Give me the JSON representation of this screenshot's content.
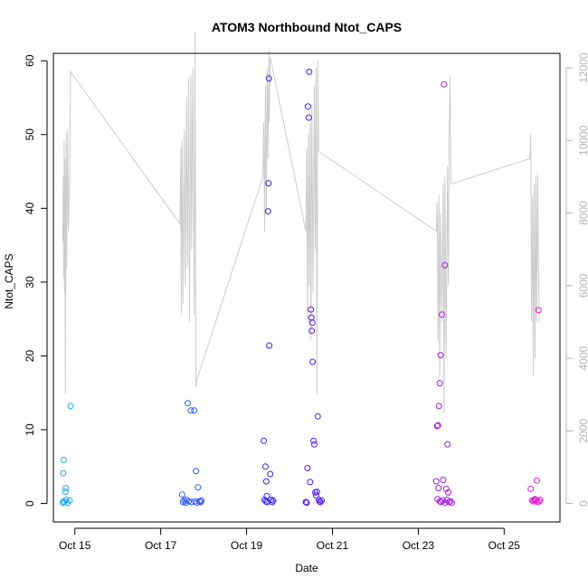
{
  "chart_data": {
    "type": "scatter",
    "title": "ATOM3 Northbound Ntot_CAPS",
    "xlabel": "Date",
    "ylabel": "Ntot_CAPS",
    "xlim": [
      14.5,
      26.3
    ],
    "ylim": [
      -2.5,
      61
    ],
    "y2lim": [
      -510,
      12400
    ],
    "x_ticks": [
      {
        "value": 15,
        "label": "Oct 15"
      },
      {
        "value": 17,
        "label": "Oct 17"
      },
      {
        "value": 19,
        "label": "Oct 19"
      },
      {
        "value": 21,
        "label": "Oct 21"
      },
      {
        "value": 23,
        "label": "Oct 23"
      },
      {
        "value": 25,
        "label": "Oct 25"
      }
    ],
    "y_ticks": [
      0,
      10,
      20,
      30,
      40,
      50,
      60
    ],
    "y2_ticks": [
      0,
      2000,
      4000,
      6000,
      8000,
      10000,
      12000
    ],
    "grid": false,
    "colors": {
      "line": "#cccccc",
      "point_start": "#1ab2f5",
      "point_mid": "#3a1af5",
      "point_end": "#f51ad0",
      "axis": "#000000",
      "secondary_axis": "#b3b3b3"
    },
    "series": [
      {
        "type": "points",
        "points": [
          [
            14.72,
            0.1
          ],
          [
            14.74,
            0.3
          ],
          [
            14.76,
            0.2
          ],
          [
            14.73,
            4.1
          ],
          [
            14.74,
            5.9
          ],
          [
            14.78,
            1.6
          ],
          [
            14.79,
            2.1
          ],
          [
            14.8,
            0.5
          ],
          [
            14.83,
            0.1
          ],
          [
            14.88,
            0.4
          ],
          [
            14.9,
            13.2
          ],
          [
            17.5,
            1.2
          ],
          [
            17.52,
            0.2
          ],
          [
            17.55,
            0.4
          ],
          [
            17.58,
            0.1
          ],
          [
            17.6,
            0.5
          ],
          [
            17.63,
            13.6
          ],
          [
            17.65,
            0.3
          ],
          [
            17.7,
            12.6
          ],
          [
            17.72,
            0.2
          ],
          [
            17.78,
            12.6
          ],
          [
            17.8,
            0.3
          ],
          [
            17.82,
            4.4
          ],
          [
            17.84,
            0.1
          ],
          [
            17.87,
            2.2
          ],
          [
            17.9,
            0.3
          ],
          [
            17.93,
            0.2
          ],
          [
            17.95,
            0.4
          ],
          [
            19.4,
            8.5
          ],
          [
            19.42,
            0.5
          ],
          [
            19.44,
            5.0
          ],
          [
            19.45,
            0.3
          ],
          [
            19.46,
            3.0
          ],
          [
            19.47,
            1.0
          ],
          [
            19.48,
            0.2
          ],
          [
            19.5,
            39.6
          ],
          [
            19.51,
            43.4
          ],
          [
            19.52,
            57.6
          ],
          [
            19.53,
            21.4
          ],
          [
            19.55,
            4.0
          ],
          [
            19.57,
            0.5
          ],
          [
            19.6,
            0.2
          ],
          [
            19.62,
            0.4
          ],
          [
            20.42,
            4.8
          ],
          [
            20.43,
            53.8
          ],
          [
            20.45,
            52.3
          ],
          [
            20.46,
            58.5
          ],
          [
            20.48,
            2.9
          ],
          [
            20.5,
            26.3
          ],
          [
            20.51,
            25.2
          ],
          [
            20.52,
            23.4
          ],
          [
            20.53,
            24.5
          ],
          [
            20.54,
            19.2
          ],
          [
            20.56,
            8.5
          ],
          [
            20.58,
            8.0
          ],
          [
            20.6,
            1.5
          ],
          [
            20.62,
            1.1
          ],
          [
            20.64,
            1.6
          ],
          [
            20.66,
            11.8
          ],
          [
            20.68,
            0.5
          ],
          [
            20.7,
            0.3
          ],
          [
            20.72,
            0.2
          ],
          [
            20.75,
            0.4
          ],
          [
            20.4,
            0.1
          ],
          [
            20.38,
            0.2
          ],
          [
            23.42,
            3.0
          ],
          [
            23.44,
            10.5
          ],
          [
            23.46,
            10.6
          ],
          [
            23.48,
            13.2
          ],
          [
            23.5,
            16.3
          ],
          [
            23.52,
            20.1
          ],
          [
            23.55,
            25.6
          ],
          [
            23.58,
            3.2
          ],
          [
            23.6,
            56.8
          ],
          [
            23.62,
            32.3
          ],
          [
            23.65,
            2.0
          ],
          [
            23.68,
            8.0
          ],
          [
            23.7,
            1.5
          ],
          [
            23.5,
            0.3
          ],
          [
            23.53,
            0.2
          ],
          [
            23.57,
            0.4
          ],
          [
            23.63,
            0.1
          ],
          [
            23.67,
            0.5
          ],
          [
            23.72,
            0.2
          ],
          [
            23.75,
            0.3
          ],
          [
            23.78,
            0.1
          ],
          [
            23.45,
            0.6
          ],
          [
            23.47,
            2.1
          ],
          [
            25.62,
            2.0
          ],
          [
            25.65,
            0.4
          ],
          [
            25.68,
            0.3
          ],
          [
            25.7,
            0.5
          ],
          [
            25.72,
            0.6
          ],
          [
            25.74,
            0.4
          ],
          [
            25.76,
            3.1
          ],
          [
            25.78,
            0.2
          ],
          [
            25.8,
            26.2
          ],
          [
            25.82,
            0.3
          ],
          [
            25.84,
            0.5
          ]
        ]
      },
      {
        "type": "line",
        "axis": "secondary",
        "points": [
          [
            14.72,
            7200
          ],
          [
            14.73,
            9000
          ],
          [
            14.74,
            6200
          ],
          [
            14.75,
            10000
          ],
          [
            14.76,
            5800
          ],
          [
            14.77,
            9500
          ],
          [
            14.78,
            3000
          ],
          [
            14.8,
            10200
          ],
          [
            14.81,
            6500
          ],
          [
            14.83,
            10300
          ],
          [
            14.85,
            7500
          ],
          [
            14.88,
            9000
          ],
          [
            14.9,
            11900
          ],
          [
            17.45,
            7700
          ],
          [
            17.47,
            9800
          ],
          [
            17.48,
            5200
          ],
          [
            17.5,
            10000
          ],
          [
            17.52,
            5500
          ],
          [
            17.55,
            10300
          ],
          [
            17.57,
            6000
          ],
          [
            17.6,
            11200
          ],
          [
            17.62,
            6500
          ],
          [
            17.65,
            11700
          ],
          [
            17.67,
            5000
          ],
          [
            17.7,
            11800
          ],
          [
            17.72,
            7000
          ],
          [
            17.75,
            12000
          ],
          [
            17.78,
            5200
          ],
          [
            17.8,
            13000
          ],
          [
            17.82,
            3200
          ],
          [
            17.84,
            3400
          ],
          [
            19.38,
            9000
          ],
          [
            19.4,
            10500
          ],
          [
            19.42,
            7500
          ],
          [
            19.44,
            11500
          ],
          [
            19.46,
            8000
          ],
          [
            19.48,
            12000
          ],
          [
            19.5,
            9500
          ],
          [
            19.52,
            12500
          ],
          [
            19.53,
            10500
          ],
          [
            19.55,
            12300
          ],
          [
            20.38,
            7500
          ],
          [
            20.4,
            9800
          ],
          [
            20.42,
            5000
          ],
          [
            20.44,
            10200
          ],
          [
            20.46,
            6000
          ],
          [
            20.48,
            10500
          ],
          [
            20.5,
            4500
          ],
          [
            20.52,
            11000
          ],
          [
            20.55,
            5800
          ],
          [
            20.58,
            11500
          ],
          [
            20.6,
            7000
          ],
          [
            20.62,
            12000
          ],
          [
            20.64,
            3000
          ],
          [
            20.66,
            12200
          ],
          [
            20.68,
            9700
          ],
          [
            23.42,
            7500
          ],
          [
            23.44,
            8300
          ],
          [
            23.46,
            4500
          ],
          [
            23.48,
            8500
          ],
          [
            23.5,
            3500
          ],
          [
            23.52,
            8000
          ],
          [
            23.55,
            5000
          ],
          [
            23.58,
            8800
          ],
          [
            23.6,
            2500
          ],
          [
            23.62,
            9000
          ],
          [
            23.65,
            4000
          ],
          [
            23.68,
            9300
          ],
          [
            23.7,
            6000
          ],
          [
            23.72,
            10200
          ],
          [
            23.74,
            11800
          ],
          [
            23.76,
            8800
          ],
          [
            25.6,
            9500
          ],
          [
            25.62,
            10200
          ],
          [
            25.64,
            5000
          ],
          [
            25.66,
            8500
          ],
          [
            25.68,
            3500
          ],
          [
            25.7,
            8800
          ],
          [
            25.72,
            4000
          ],
          [
            25.74,
            9000
          ],
          [
            25.76,
            5000
          ],
          [
            25.78,
            9100
          ],
          [
            25.8,
            6500
          ],
          [
            25.82,
            5000
          ]
        ]
      }
    ]
  }
}
